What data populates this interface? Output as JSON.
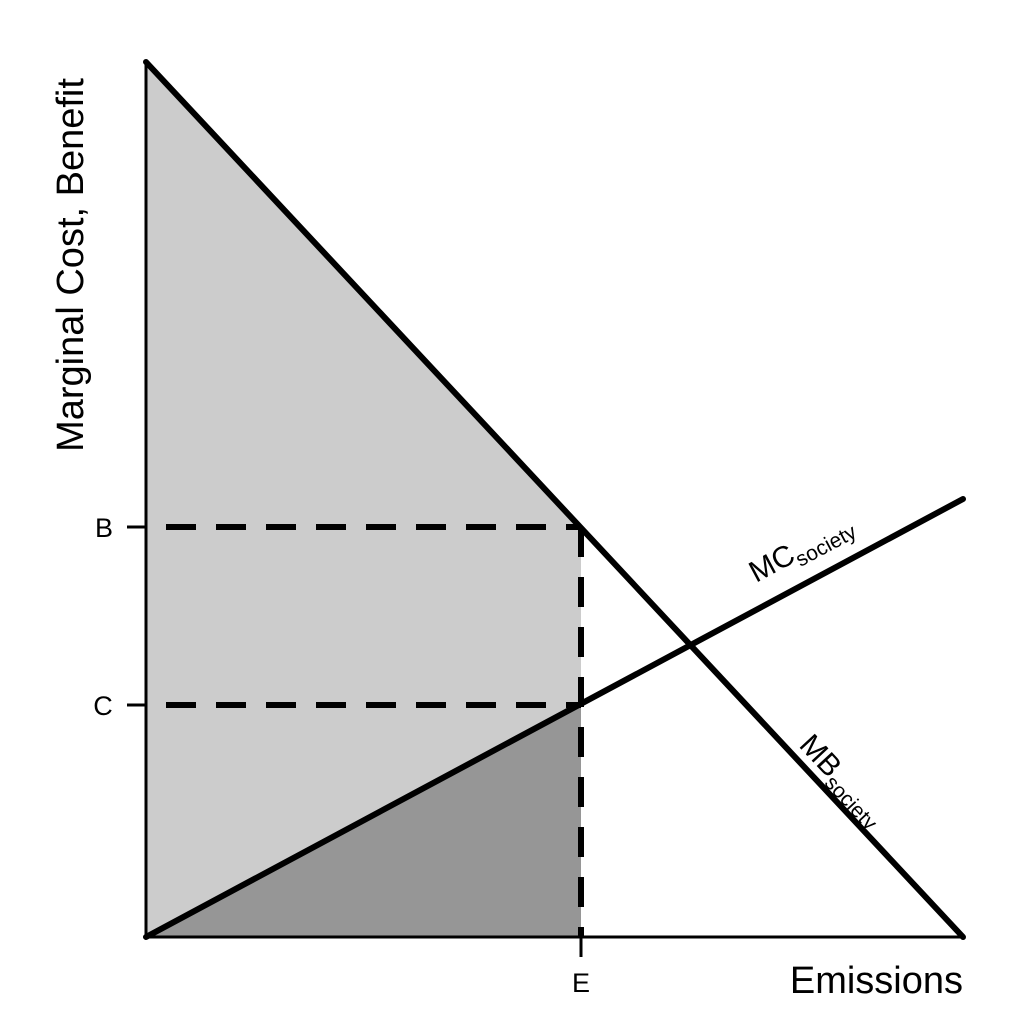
{
  "axes": {
    "x_title": "Emissions",
    "y_title": "Marginal Cost, Benefit"
  },
  "ticks": {
    "x_e": "E",
    "y_b": "B",
    "y_c": "C"
  },
  "curves": {
    "mc": {
      "main": "MC",
      "sub": "society"
    },
    "mb": {
      "main": "MB",
      "sub": "society"
    }
  },
  "colors": {
    "benefit_area": "#cccccc",
    "cost_area": "#969696",
    "line": "#000000",
    "background": "#ffffff"
  }
}
